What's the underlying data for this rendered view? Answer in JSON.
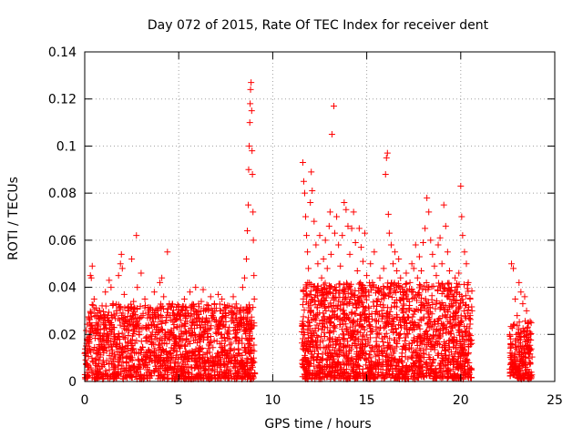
{
  "chart_data": {
    "type": "scatter",
    "title": "Day 072 of 2015, Rate Of TEC Index for receiver dent",
    "xlabel": "GPS time / hours",
    "ylabel": "ROTI / TECUs",
    "xlim": [
      0,
      25
    ],
    "ylim": [
      0,
      0.14
    ],
    "x_ticks": [
      0,
      5,
      10,
      15,
      20,
      25
    ],
    "x_tick_labels": [
      "0",
      "5",
      "10",
      "15",
      "20",
      "25"
    ],
    "y_ticks": [
      0,
      0.02,
      0.04,
      0.06,
      0.08,
      0.1,
      0.12,
      0.14
    ],
    "y_tick_labels": [
      "0",
      "0.02",
      "0.04",
      "0.06",
      "0.08",
      "0.1",
      "0.12",
      "0.14"
    ],
    "grid": true,
    "legend": "none",
    "marker": "+",
    "color": "#ff0000",
    "series": [
      {
        "name": "",
        "points": [
          [
            0.1,
            0.012
          ],
          [
            0.2,
            0.018
          ],
          [
            0.3,
            0.045
          ],
          [
            0.35,
            0.044
          ],
          [
            0.4,
            0.049
          ],
          [
            0.5,
            0.035
          ],
          [
            0.6,
            0.028
          ],
          [
            0.7,
            0.022
          ],
          [
            0.8,
            0.03
          ],
          [
            0.9,
            0.015
          ],
          [
            1.0,
            0.025
          ],
          [
            1.1,
            0.038
          ],
          [
            1.2,
            0.02
          ],
          [
            1.3,
            0.043
          ],
          [
            1.4,
            0.04
          ],
          [
            1.5,
            0.033
          ],
          [
            1.6,
            0.018
          ],
          [
            1.7,
            0.029
          ],
          [
            1.8,
            0.045
          ],
          [
            1.9,
            0.05
          ],
          [
            1.95,
            0.054
          ],
          [
            2.0,
            0.048
          ],
          [
            2.1,
            0.037
          ],
          [
            2.2,
            0.022
          ],
          [
            2.3,
            0.03
          ],
          [
            2.4,
            0.026
          ],
          [
            2.5,
            0.052
          ],
          [
            2.6,
            0.034
          ],
          [
            2.75,
            0.062
          ],
          [
            2.8,
            0.04
          ],
          [
            2.9,
            0.021
          ],
          [
            3.0,
            0.046
          ],
          [
            3.1,
            0.028
          ],
          [
            3.2,
            0.035
          ],
          [
            3.3,
            0.019
          ],
          [
            3.4,
            0.024
          ],
          [
            3.5,
            0.031
          ],
          [
            3.6,
            0.027
          ],
          [
            3.7,
            0.038
          ],
          [
            3.8,
            0.022
          ],
          [
            3.9,
            0.03
          ],
          [
            4.0,
            0.042
          ],
          [
            4.1,
            0.044
          ],
          [
            4.2,
            0.036
          ],
          [
            4.3,
            0.025
          ],
          [
            4.4,
            0.055
          ],
          [
            4.5,
            0.033
          ],
          [
            4.6,
            0.02
          ],
          [
            4.7,
            0.028
          ],
          [
            4.8,
            0.017
          ],
          [
            4.9,
            0.023
          ],
          [
            5.0,
            0.032
          ],
          [
            5.1,
            0.026
          ],
          [
            5.2,
            0.03
          ],
          [
            5.3,
            0.035
          ],
          [
            5.4,
            0.021
          ],
          [
            5.5,
            0.029
          ],
          [
            5.6,
            0.038
          ],
          [
            5.7,
            0.024
          ],
          [
            5.8,
            0.032
          ],
          [
            5.9,
            0.04
          ],
          [
            6.0,
            0.027
          ],
          [
            6.1,
            0.02
          ],
          [
            6.2,
            0.034
          ],
          [
            6.3,
            0.039
          ],
          [
            6.4,
            0.025
          ],
          [
            6.5,
            0.031
          ],
          [
            6.6,
            0.022
          ],
          [
            6.7,
            0.036
          ],
          [
            6.8,
            0.028
          ],
          [
            6.9,
            0.033
          ],
          [
            7.0,
            0.026
          ],
          [
            7.1,
            0.037
          ],
          [
            7.2,
            0.03
          ],
          [
            7.3,
            0.035
          ],
          [
            7.4,
            0.024
          ],
          [
            7.5,
            0.029
          ],
          [
            7.6,
            0.021
          ],
          [
            7.7,
            0.032
          ],
          [
            7.8,
            0.027
          ],
          [
            7.9,
            0.036
          ],
          [
            8.0,
            0.023
          ],
          [
            8.1,
            0.031
          ],
          [
            8.2,
            0.025
          ],
          [
            8.3,
            0.03
          ],
          [
            8.4,
            0.04
          ],
          [
            8.5,
            0.044
          ],
          [
            8.6,
            0.052
          ],
          [
            8.65,
            0.064
          ],
          [
            8.7,
            0.075
          ],
          [
            8.72,
            0.09
          ],
          [
            8.75,
            0.1
          ],
          [
            8.78,
            0.11
          ],
          [
            8.8,
            0.118
          ],
          [
            8.82,
            0.124
          ],
          [
            8.85,
            0.127
          ],
          [
            8.88,
            0.115
          ],
          [
            8.9,
            0.098
          ],
          [
            8.92,
            0.088
          ],
          [
            8.95,
            0.072
          ],
          [
            8.97,
            0.06
          ],
          [
            9.0,
            0.045
          ],
          [
            9.02,
            0.035
          ],
          [
            11.6,
            0.093
          ],
          [
            11.65,
            0.085
          ],
          [
            11.7,
            0.08
          ],
          [
            11.75,
            0.07
          ],
          [
            11.8,
            0.062
          ],
          [
            11.85,
            0.055
          ],
          [
            11.9,
            0.048
          ],
          [
            12.0,
            0.076
          ],
          [
            12.05,
            0.089
          ],
          [
            12.1,
            0.081
          ],
          [
            12.2,
            0.068
          ],
          [
            12.3,
            0.058
          ],
          [
            12.4,
            0.05
          ],
          [
            12.5,
            0.062
          ],
          [
            12.6,
            0.044
          ],
          [
            12.7,
            0.052
          ],
          [
            12.8,
            0.06
          ],
          [
            12.9,
            0.048
          ],
          [
            13.0,
            0.066
          ],
          [
            13.05,
            0.072
          ],
          [
            13.1,
            0.054
          ],
          [
            13.15,
            0.105
          ],
          [
            13.25,
            0.117
          ],
          [
            13.3,
            0.063
          ],
          [
            13.4,
            0.07
          ],
          [
            13.5,
            0.058
          ],
          [
            13.6,
            0.049
          ],
          [
            13.7,
            0.062
          ],
          [
            13.8,
            0.076
          ],
          [
            13.9,
            0.073
          ],
          [
            14.0,
            0.066
          ],
          [
            14.1,
            0.054
          ],
          [
            14.2,
            0.065
          ],
          [
            14.3,
            0.072
          ],
          [
            14.4,
            0.059
          ],
          [
            14.5,
            0.047
          ],
          [
            14.6,
            0.065
          ],
          [
            14.7,
            0.057
          ],
          [
            14.8,
            0.051
          ],
          [
            14.9,
            0.063
          ],
          [
            15.0,
            0.045
          ],
          [
            15.1,
            0.038
          ],
          [
            15.2,
            0.05
          ],
          [
            15.3,
            0.042
          ],
          [
            15.4,
            0.055
          ],
          [
            15.5,
            0.04
          ],
          [
            15.6,
            0.035
          ],
          [
            15.7,
            0.044
          ],
          [
            15.8,
            0.03
          ],
          [
            15.9,
            0.048
          ],
          [
            16.0,
            0.088
          ],
          [
            16.05,
            0.095
          ],
          [
            16.1,
            0.097
          ],
          [
            16.15,
            0.071
          ],
          [
            16.2,
            0.063
          ],
          [
            16.3,
            0.058
          ],
          [
            16.4,
            0.05
          ],
          [
            16.5,
            0.055
          ],
          [
            16.6,
            0.047
          ],
          [
            16.7,
            0.052
          ],
          [
            16.8,
            0.044
          ],
          [
            16.9,
            0.04
          ],
          [
            17.0,
            0.038
          ],
          [
            17.1,
            0.046
          ],
          [
            17.2,
            0.035
          ],
          [
            17.3,
            0.042
          ],
          [
            17.4,
            0.05
          ],
          [
            17.5,
            0.048
          ],
          [
            17.6,
            0.058
          ],
          [
            17.7,
            0.044
          ],
          [
            17.8,
            0.053
          ],
          [
            17.9,
            0.047
          ],
          [
            18.0,
            0.059
          ],
          [
            18.1,
            0.065
          ],
          [
            18.2,
            0.078
          ],
          [
            18.3,
            0.072
          ],
          [
            18.4,
            0.06
          ],
          [
            18.5,
            0.054
          ],
          [
            18.6,
            0.049
          ],
          [
            18.7,
            0.045
          ],
          [
            18.8,
            0.058
          ],
          [
            18.9,
            0.061
          ],
          [
            19.0,
            0.05
          ],
          [
            19.1,
            0.075
          ],
          [
            19.2,
            0.066
          ],
          [
            19.3,
            0.055
          ],
          [
            19.4,
            0.047
          ],
          [
            19.5,
            0.04
          ],
          [
            19.6,
            0.036
          ],
          [
            19.7,
            0.044
          ],
          [
            19.8,
            0.038
          ],
          [
            19.9,
            0.046
          ],
          [
            20.0,
            0.083
          ],
          [
            20.05,
            0.07
          ],
          [
            20.1,
            0.062
          ],
          [
            20.2,
            0.055
          ],
          [
            20.3,
            0.05
          ],
          [
            20.4,
            0.042
          ],
          [
            20.5,
            0.035
          ],
          [
            20.6,
            0.03
          ],
          [
            22.7,
            0.05
          ],
          [
            22.8,
            0.048
          ],
          [
            22.9,
            0.035
          ],
          [
            23.0,
            0.028
          ],
          [
            23.1,
            0.042
          ],
          [
            23.2,
            0.038
          ],
          [
            23.3,
            0.033
          ],
          [
            23.4,
            0.036
          ],
          [
            23.5,
            0.03
          ],
          [
            23.6,
            0.025
          ],
          [
            23.7,
            0.02
          ]
        ]
      }
    ],
    "dense_band": {
      "description_segments": [
        {
          "x_start": 0.0,
          "x_end": 9.05,
          "y_min": 0.001,
          "y_max": 0.033,
          "count": 1500
        },
        {
          "x_start": 11.55,
          "x_end": 20.6,
          "y_min": 0.001,
          "y_max": 0.042,
          "count": 1800
        },
        {
          "x_start": 22.6,
          "x_end": 23.8,
          "y_min": 0.001,
          "y_max": 0.026,
          "count": 220
        }
      ]
    }
  }
}
